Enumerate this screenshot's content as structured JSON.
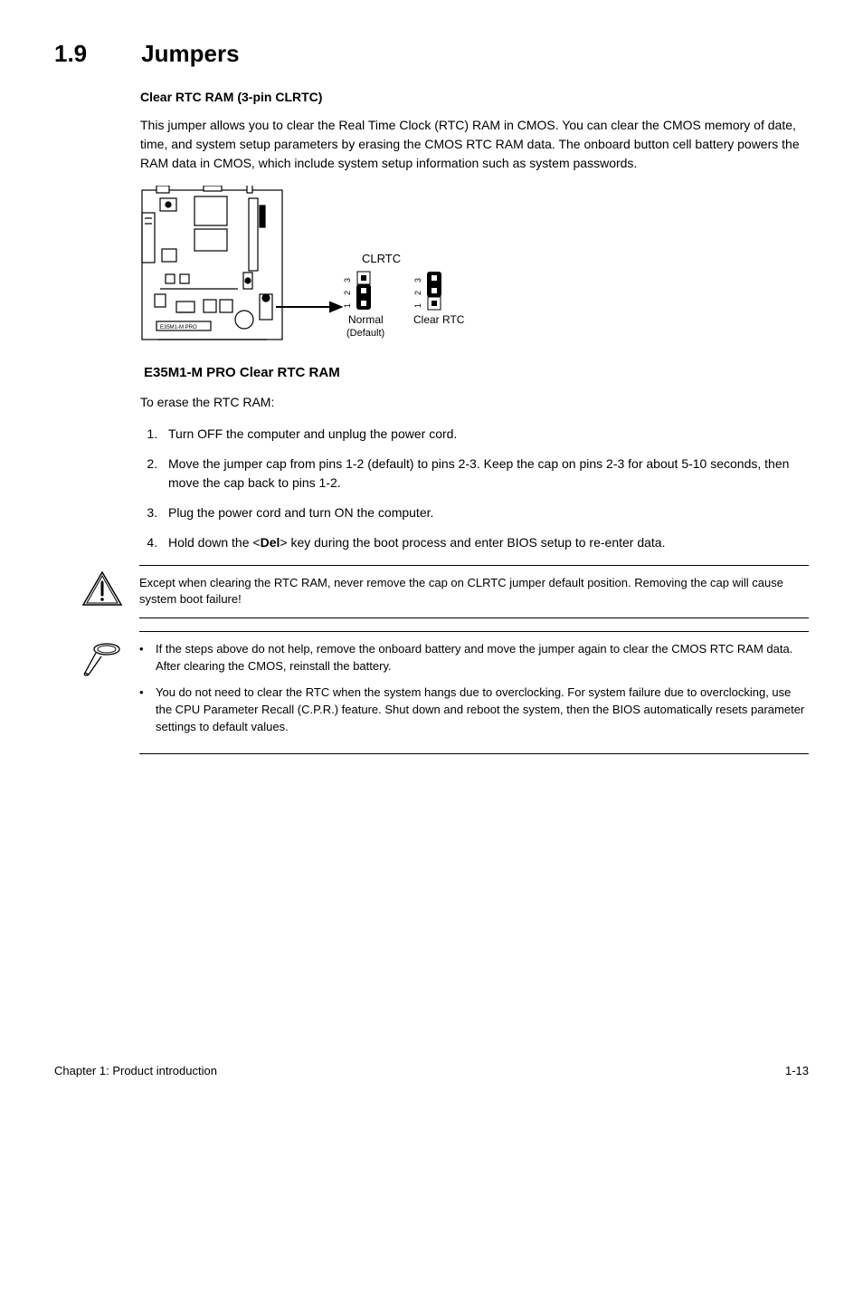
{
  "section": {
    "number": "1.9",
    "title": "Jumpers"
  },
  "subheading": "Clear RTC RAM (3-pin CLRTC)",
  "intro_paragraph": "This jumper allows you to clear the Real Time Clock (RTC) RAM in CMOS. You can clear the CMOS memory of date, time, and system setup parameters by erasing the CMOS RTC RAM data. The onboard button cell battery powers the RAM data in CMOS, which include system setup information such as system passwords.",
  "diagram": {
    "label_clrtc": "CLRTC",
    "label_normal": "Normal",
    "label_default": "(Default)",
    "label_clear": "Clear RTC",
    "pin_1": "1",
    "pin_2": "2",
    "pin_3": "3",
    "board_label": "E35M1-M PRO",
    "caption": "E35M1-M PRO Clear RTC RAM"
  },
  "erase_heading": "To erase the RTC RAM:",
  "steps": [
    "Turn OFF the computer and unplug the power cord.",
    "Move the jumper cap from pins 1-2 (default) to pins 2-3. Keep the cap on pins 2-3 for about 5-10 seconds, then move the cap back to pins 1-2.",
    "Plug the power cord and turn ON the computer.",
    "Hold down the <__DEL__> key during the boot process and enter BIOS setup to re-enter data."
  ],
  "del_key": "Del",
  "warning_text": "Except when clearing the RTC RAM, never remove the cap on CLRTC jumper default position. Removing the cap will cause system boot failure!",
  "note_bullets": [
    "If the steps above do not help, remove the onboard battery and move the jumper again to clear the CMOS RTC RAM data. After clearing the CMOS, reinstall the battery.",
    "You do not need to clear the RTC when the system hangs due to overclocking. For system failure due to overclocking, use the CPU Parameter Recall (C.P.R.) feature. Shut down and reboot the system, then the BIOS automatically resets parameter settings to default values."
  ],
  "footer": {
    "left": "Chapter 1: Product introduction",
    "right": "1-13"
  },
  "colors": {
    "text": "#000000",
    "background": "#ffffff",
    "line": "#000000",
    "jumper_fill": "#ffffff",
    "jumper_cap": "#000000"
  }
}
